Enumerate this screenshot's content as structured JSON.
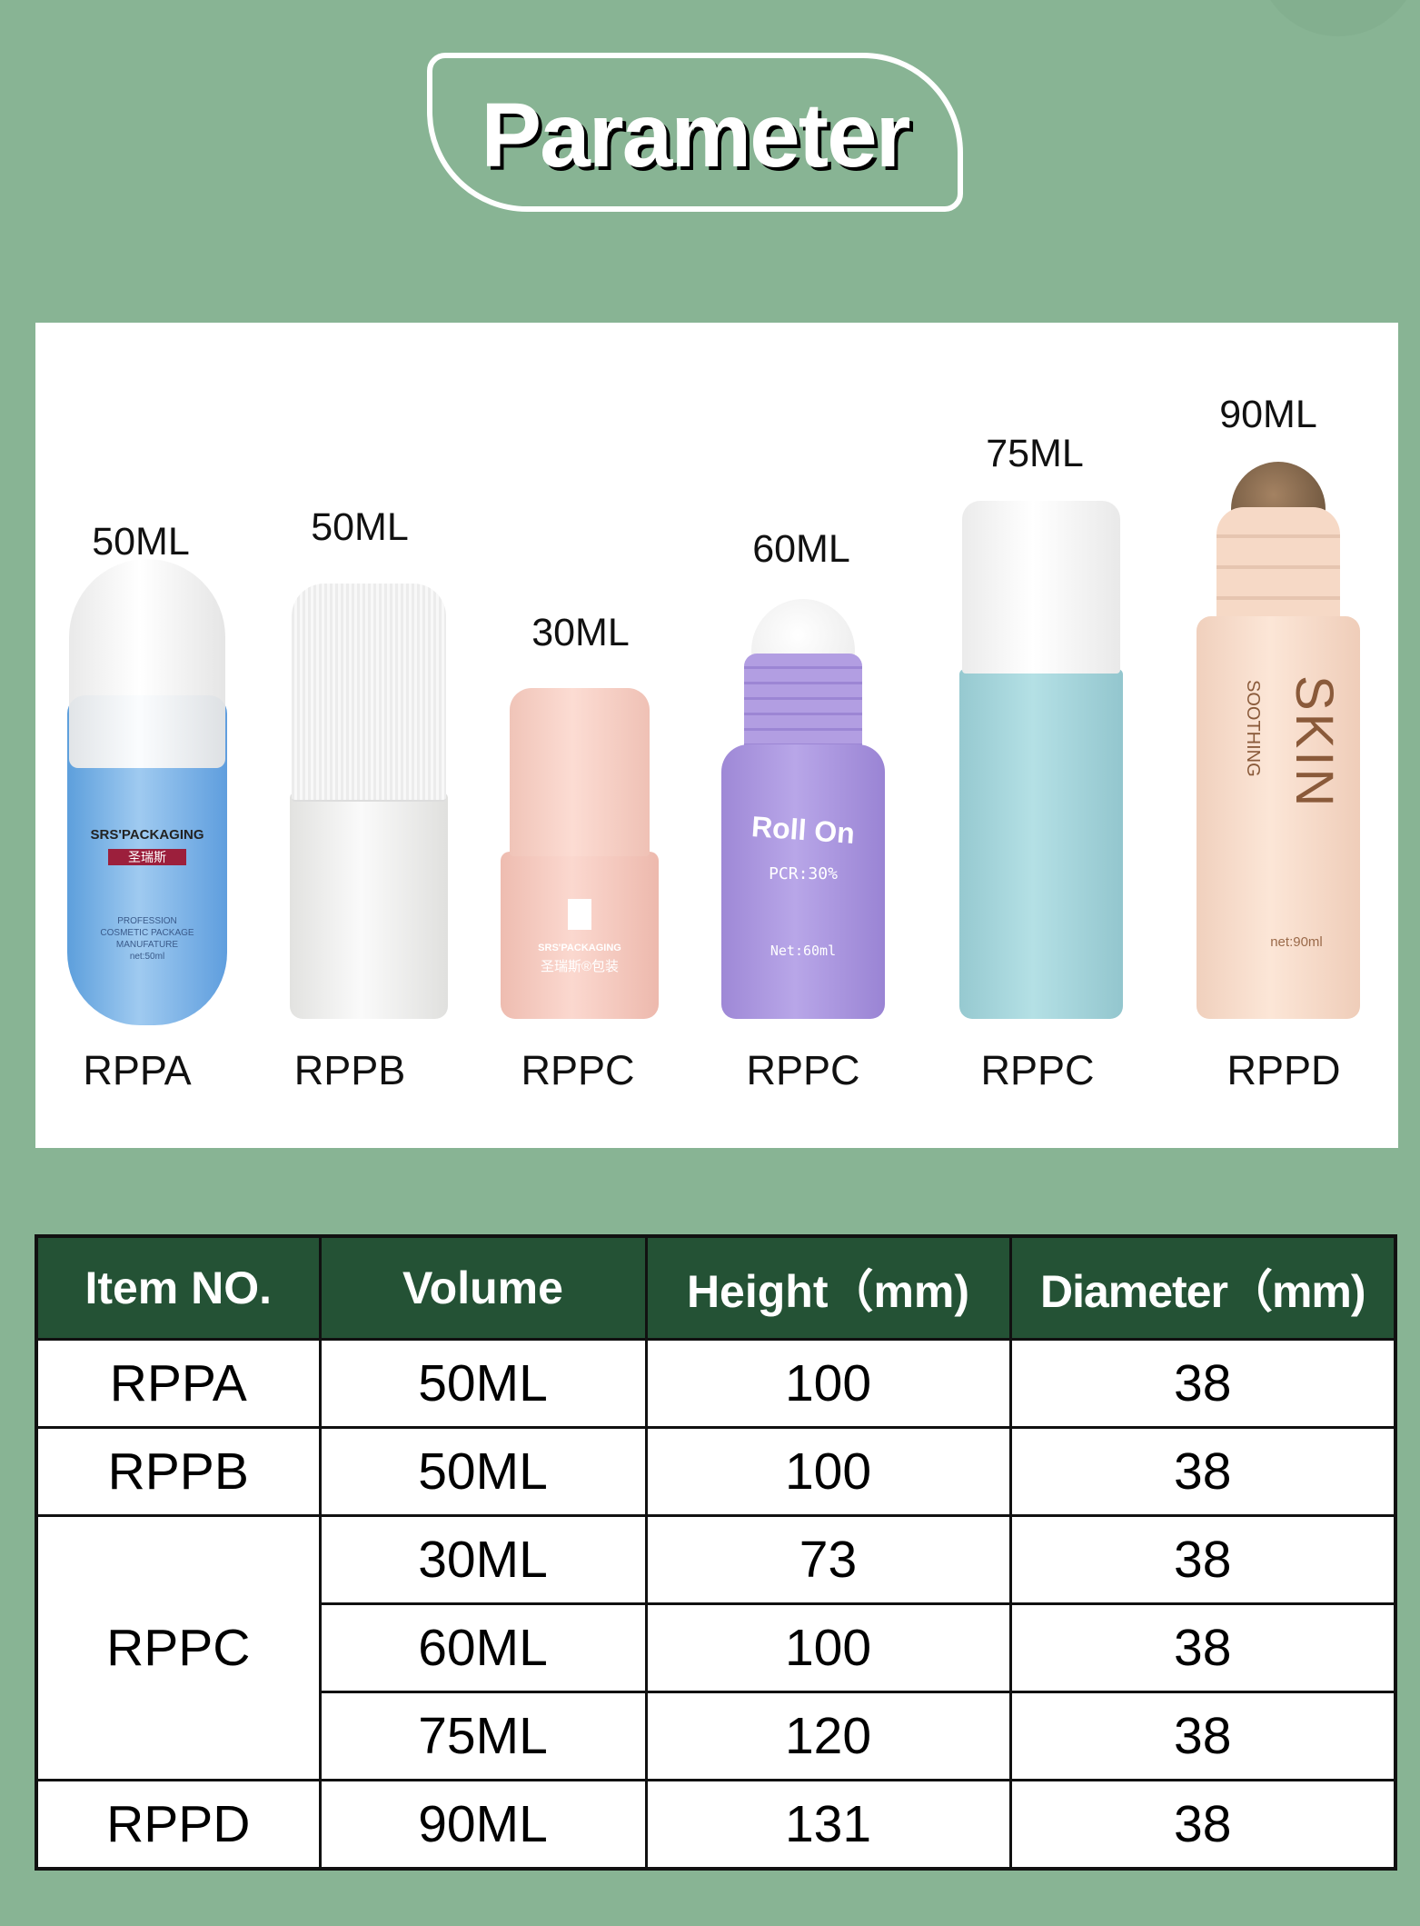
{
  "header": {
    "title": "Parameter"
  },
  "colors": {
    "background": "#88b494",
    "table_header": "#245235",
    "panel": "#ffffff"
  },
  "products": [
    {
      "volume": "50ML",
      "code": "RPPA",
      "cap_color": "#f4f4f4",
      "body_color": "#7fb6e4",
      "label_lines": [
        "SRS'PACKAGING",
        "圣瑞斯",
        "PROFESSION",
        "COSMETIC PACKAGE",
        "MANUFATURE",
        "net:50ml"
      ]
    },
    {
      "volume": "50ML",
      "code": "RPPB",
      "cap_color": "#f2f2f2",
      "body_color": "#f3f3f1",
      "label_lines": []
    },
    {
      "volume": "30ML",
      "code": "RPPC",
      "cap_color": "#f6cfc4",
      "body_color": "#f6cbc0",
      "label_lines": [
        "SRS'PACKAGING",
        "圣瑞斯®包装"
      ]
    },
    {
      "volume": "60ML",
      "code": "RPPC",
      "cap_color": "#b8a3e0",
      "body_color": "#ad98df",
      "label_lines": [
        "Roll On",
        "PCR:30%",
        "Net:60ml"
      ]
    },
    {
      "volume": "75ML",
      "code": "RPPC",
      "cap_color": "#f6f6f6",
      "body_color": "#a9d7dd",
      "label_lines": []
    },
    {
      "volume": "90ML",
      "code": "RPPD",
      "cap_color": "#f7dcc9",
      "body_color": "#f9e1d0",
      "label_lines": [
        "SKIN",
        "SOOTHING",
        "net:90ml"
      ]
    }
  ],
  "table": {
    "headers": [
      "Item NO.",
      "Volume",
      "Height（mm)",
      "Diameter（mm)"
    ],
    "rows": [
      {
        "item": "RPPA",
        "volume": "50ML",
        "height": "100",
        "diameter": "38"
      },
      {
        "item": "RPPB",
        "volume": "50ML",
        "height": "100",
        "diameter": "38"
      },
      {
        "item": "RPPC",
        "volume": "30ML",
        "height": "73",
        "diameter": "38"
      },
      {
        "item": "",
        "volume": "60ML",
        "height": "100",
        "diameter": "38"
      },
      {
        "item": "",
        "volume": "75ML",
        "height": "120",
        "diameter": "38"
      },
      {
        "item": "RPPD",
        "volume": "90ML",
        "height": "131",
        "diameter": "38"
      }
    ]
  }
}
